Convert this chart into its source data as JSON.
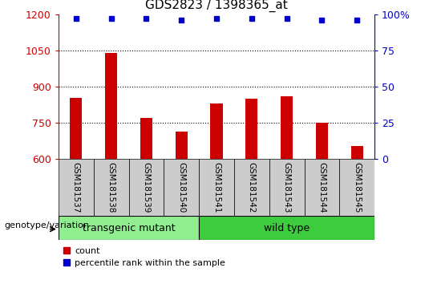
{
  "title": "GDS2823 / 1398365_at",
  "samples": [
    "GSM181537",
    "GSM181538",
    "GSM181539",
    "GSM181540",
    "GSM181541",
    "GSM181542",
    "GSM181543",
    "GSM181544",
    "GSM181545"
  ],
  "counts": [
    855,
    1040,
    770,
    715,
    830,
    850,
    860,
    750,
    655
  ],
  "percentiles": [
    97,
    97,
    97,
    96,
    97,
    97,
    97,
    96,
    96
  ],
  "ylim_left": [
    600,
    1200
  ],
  "ylim_right": [
    0,
    100
  ],
  "yticks_left": [
    600,
    750,
    900,
    1050,
    1200
  ],
  "yticks_right": [
    0,
    25,
    50,
    75,
    100
  ],
  "bar_color": "#cc0000",
  "dot_color": "#0000cc",
  "transgenic_count": 4,
  "wild_type_count": 5,
  "transgenic_label": "transgenic mutant",
  "wild_type_label": "wild type",
  "transgenic_color": "#90ee90",
  "wild_type_color": "#3dcc3d",
  "group_label": "genotype/variation",
  "legend_count_label": "count",
  "legend_percentile_label": "percentile rank within the sample",
  "bar_width": 0.35,
  "tick_bg_color": "#cccccc",
  "grid_yticks": [
    750,
    900,
    1050
  ]
}
